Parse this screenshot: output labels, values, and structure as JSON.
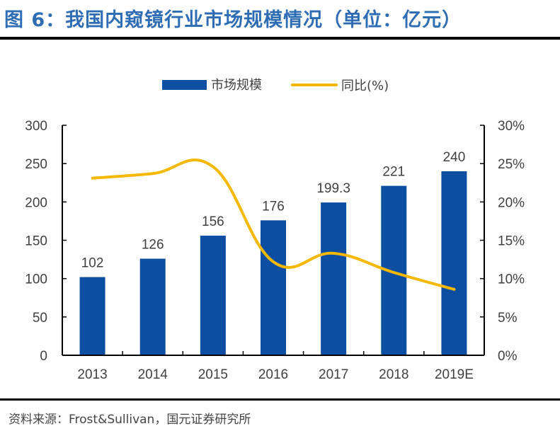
{
  "title": "图 6：我国内窥镜行业市场规模情况（单位：亿元）",
  "source": "资料来源：Frost&Sullivan，国元证券研究所",
  "colors": {
    "bar": "#0c4ea2",
    "line": "#f5b800",
    "title": "#2e6db4",
    "text": "#404040"
  },
  "chart_data": {
    "type": "bar+line",
    "title": "我国内窥镜行业市场规模情况（单位：亿元）",
    "categories": [
      "2013",
      "2014",
      "2015",
      "2016",
      "2017",
      "2018",
      "2019E"
    ],
    "series": [
      {
        "name": "市场规模",
        "type": "bar",
        "axis": "left",
        "values": [
          102,
          126,
          156,
          176,
          199.3,
          221,
          240
        ],
        "labels": [
          "102",
          "126",
          "156",
          "176",
          "199.3",
          "221",
          "240"
        ]
      },
      {
        "name": "同比(%)",
        "type": "line",
        "axis": "right",
        "values": [
          23.1,
          23.7,
          24.6,
          12.2,
          13.3,
          10.8,
          8.6
        ]
      }
    ],
    "y_left": {
      "range": [
        0,
        300
      ],
      "ticks": [
        "0",
        "50",
        "100",
        "150",
        "200",
        "250",
        "300"
      ]
    },
    "y_right": {
      "range": [
        0,
        30
      ],
      "ticks": [
        "0%",
        "5%",
        "10%",
        "15%",
        "20%",
        "25%",
        "30%"
      ]
    },
    "legend": {
      "position": "top",
      "entries": [
        "市场规模",
        "同比(%)"
      ]
    },
    "grid": false
  }
}
